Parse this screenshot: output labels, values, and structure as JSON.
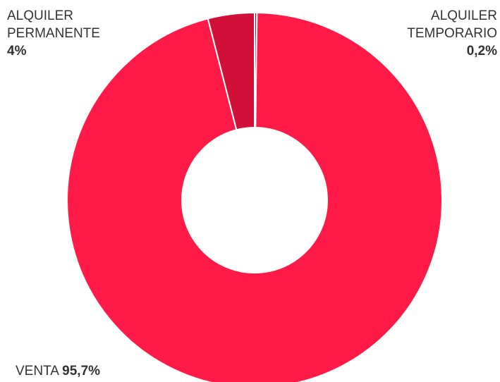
{
  "chart_data": {
    "type": "donut",
    "categories": [
      "ALQUILER TEMPORARIO",
      "VENTA",
      "ALQUILER PERMANENTE"
    ],
    "values": [
      0.2,
      95.7,
      4
    ],
    "value_labels": [
      "0,2%",
      "95,7%",
      "4%"
    ],
    "colors": [
      "#9e0c2a",
      "#ff1a47",
      "#d01038"
    ]
  }
}
